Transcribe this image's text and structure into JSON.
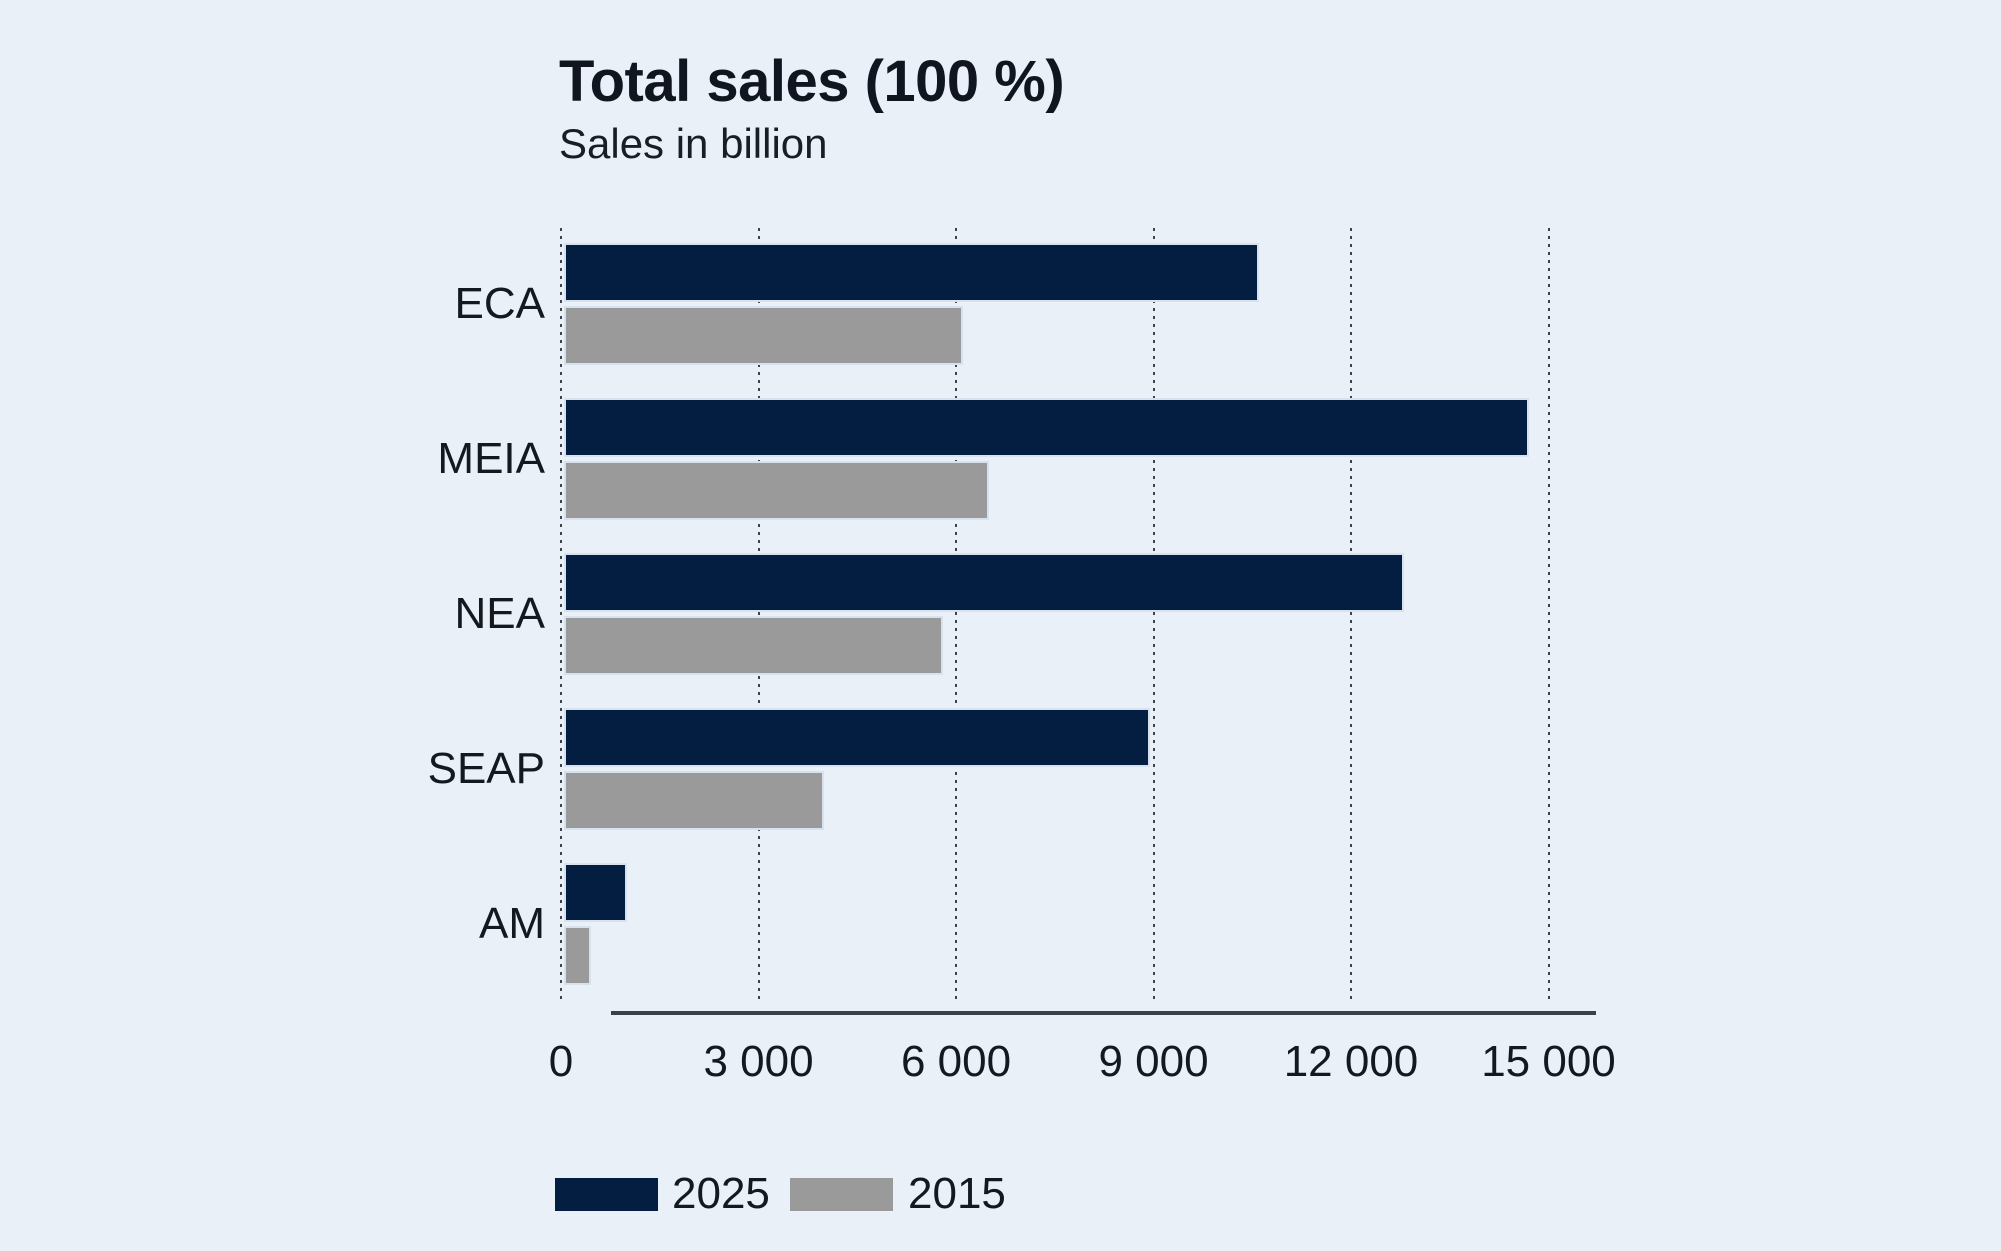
{
  "chart_data": {
    "type": "bar",
    "orientation": "horizontal",
    "title": "Total sales (100 %)",
    "subtitle": "Sales in billion",
    "categories": [
      "ECA",
      "MEIA",
      "NEA",
      "SEAP",
      "AM"
    ],
    "series": [
      {
        "name": "2025",
        "color": "#041e42",
        "values": [
          10600,
          14700,
          12800,
          8950,
          1000
        ]
      },
      {
        "name": "2015",
        "color": "#9a9a9a",
        "values": [
          6100,
          6500,
          5800,
          4000,
          450
        ]
      }
    ],
    "x_axis": {
      "min": 0,
      "max": 15000,
      "tick_step": 3000,
      "tick_values": [
        0,
        3000,
        6000,
        9000,
        12000,
        15000
      ],
      "tick_labels": [
        "0",
        "3 000",
        "6 000",
        "9 000",
        "12 000",
        "15 000"
      ]
    },
    "grid": "vertical-dotted",
    "legend_position": "bottom",
    "legend_entries": [
      "2025",
      "2015"
    ]
  },
  "colors": {
    "background": "#e9f0f8",
    "bar_2025": "#041e42",
    "bar_2015": "#9a9a9a",
    "bar_border": "#d8e2ee",
    "text": "#14181f",
    "axis_line": "#3c4146",
    "gridline": "#3d434b"
  }
}
